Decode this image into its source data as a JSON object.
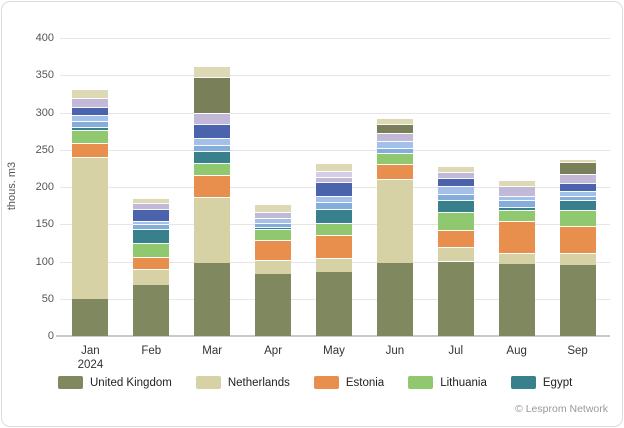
{
  "footer": {
    "copyright": "© Lesprom Network"
  },
  "chart_data": {
    "type": "bar",
    "stacked": true,
    "title": "",
    "xlabel": "",
    "ylabel": "thous. m3",
    "ylim": [
      0,
      400
    ],
    "yticks": [
      0,
      50,
      100,
      150,
      200,
      250,
      300,
      350,
      400
    ],
    "grid": true,
    "legend_position": "bottom",
    "categories": [
      {
        "label": "Jan",
        "sublabel": "2024"
      },
      {
        "label": "Feb"
      },
      {
        "label": "Mar"
      },
      {
        "label": "Apr"
      },
      {
        "label": "May"
      },
      {
        "label": "Jun"
      },
      {
        "label": "Jul"
      },
      {
        "label": "Aug"
      },
      {
        "label": "Sep"
      }
    ],
    "series": [
      {
        "name": "United Kingdom",
        "color": "#80885F",
        "in_legend": true,
        "values": [
          50,
          69,
          98,
          83,
          86,
          98,
          100,
          96,
          95
        ]
      },
      {
        "name": "Netherlands",
        "color": "#D6D2A6",
        "in_legend": true,
        "values": [
          190,
          21,
          89,
          19,
          19,
          113,
          20,
          16,
          17
        ]
      },
      {
        "name": "Estonia",
        "color": "#E98F4E",
        "in_legend": true,
        "values": [
          19,
          16,
          29,
          27,
          30,
          20,
          22,
          42,
          35
        ]
      },
      {
        "name": "Lithuania",
        "color": "#90C86F",
        "in_legend": true,
        "values": [
          17,
          19,
          16,
          14,
          17,
          14,
          25,
          15,
          22
        ]
      },
      {
        "name": "Egypt",
        "color": "#37808C",
        "in_legend": true,
        "values": [
          4,
          19,
          16,
          3,
          19,
          0,
          15,
          4,
          13
        ]
      },
      {
        "name": null,
        "color": "#85ADDC",
        "in_legend": false,
        "values": [
          9,
          6,
          9,
          6,
          9,
          8,
          9,
          10,
          6
        ]
      },
      {
        "name": null,
        "color": "#A3C1E8",
        "in_legend": false,
        "values": [
          8,
          5,
          9,
          6,
          8,
          9,
          10,
          5,
          6
        ]
      },
      {
        "name": null,
        "color": "#4A63AC",
        "in_legend": false,
        "values": [
          10,
          15,
          18,
          0,
          19,
          0,
          11,
          0,
          12
        ]
      },
      {
        "name": null,
        "color": "#C2B8D8",
        "in_legend": false,
        "values": [
          12,
          8,
          15,
          9,
          7,
          10,
          8,
          13,
          12
        ]
      },
      {
        "name": null,
        "color": "#D5CEE6",
        "in_legend": false,
        "values": [
          0,
          0,
          0,
          0,
          7,
          0,
          0,
          0,
          0
        ]
      },
      {
        "name": null,
        "color": "#798059",
        "in_legend": false,
        "values": [
          0,
          0,
          48,
          0,
          0,
          12,
          0,
          0,
          15
        ]
      },
      {
        "name": null,
        "color": "#DCD9B4",
        "in_legend": false,
        "values": [
          12,
          7,
          15,
          10,
          11,
          8,
          8,
          8,
          5
        ]
      }
    ]
  }
}
